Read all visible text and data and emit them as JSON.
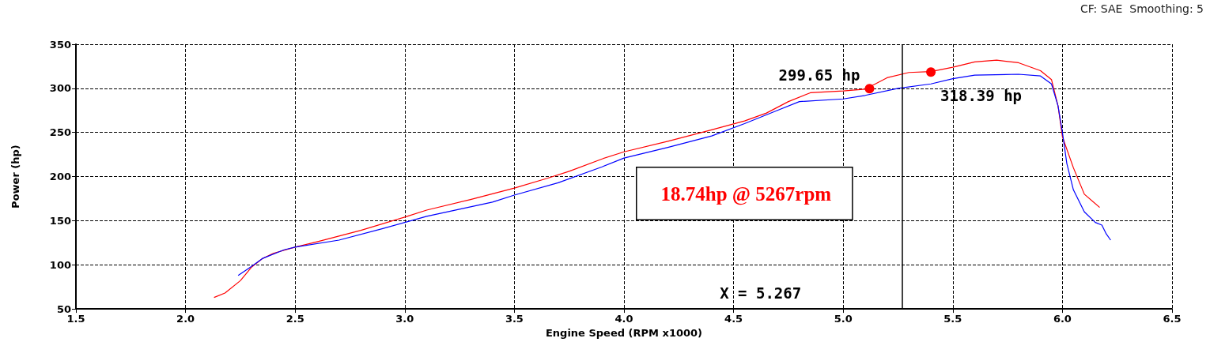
{
  "chart_data": {
    "type": "line",
    "xlabel": "Engine Speed (RPM x1000)",
    "ylabel": "Power (hp)",
    "xlim": [
      1.5,
      6.5
    ],
    "xticks": [
      1.5,
      {
        "value": 2,
        "label": "2.0"
      },
      2.5,
      {
        "value": 3,
        "label": "3.0"
      },
      3.5,
      {
        "value": 4,
        "label": "4.0"
      },
      4.5,
      {
        "value": 5,
        "label": "5.0"
      },
      5.5,
      {
        "value": 6,
        "label": "6.0"
      },
      6.5
    ],
    "ylim": [
      50,
      350
    ],
    "yticks": [
      50,
      100,
      150,
      200,
      250,
      300,
      350
    ],
    "grid": true,
    "marker": "none",
    "line_style": "solid",
    "series": [
      {
        "color": "#ff0000",
        "x": [
          2.13,
          2.18,
          2.25,
          2.3,
          2.35,
          2.4,
          2.5,
          2.6,
          2.8,
          3.0,
          3.1,
          3.3,
          3.5,
          3.65,
          3.75,
          3.9,
          4.0,
          4.2,
          4.4,
          4.55,
          4.65,
          4.75,
          4.85,
          5.0,
          5.1,
          5.2,
          5.3,
          5.4,
          5.5,
          5.6,
          5.7,
          5.8,
          5.9,
          5.95,
          5.98,
          6.0,
          6.05,
          6.1,
          6.17
        ],
        "values": [
          63,
          68,
          82,
          97,
          107,
          113,
          120,
          126,
          139,
          154,
          162,
          174,
          187,
          198,
          206,
          220,
          228,
          240,
          253,
          263,
          272,
          285,
          295,
          297,
          299,
          312,
          318,
          319,
          324,
          330,
          332,
          329,
          320,
          310,
          280,
          245,
          210,
          180,
          165
        ]
      },
      {
        "color": "#0000ff",
        "x": [
          2.24,
          2.3,
          2.35,
          2.45,
          2.5,
          2.7,
          2.9,
          3.0,
          3.1,
          3.4,
          3.5,
          3.7,
          3.9,
          4.0,
          4.2,
          4.4,
          4.55,
          4.7,
          4.8,
          5.0,
          5.1,
          5.25,
          5.4,
          5.5,
          5.6,
          5.8,
          5.9,
          5.95,
          5.98,
          6.0,
          6.02,
          6.05,
          6.1,
          6.15,
          6.18,
          6.2,
          6.22
        ],
        "values": [
          88,
          98,
          107,
          117,
          120,
          128,
          141,
          148,
          155,
          171,
          179,
          193,
          211,
          221,
          233,
          246,
          260,
          275,
          285,
          288,
          292,
          300,
          305,
          311,
          315,
          316,
          314,
          305,
          280,
          250,
          215,
          185,
          160,
          148,
          145,
          135,
          128
        ]
      }
    ],
    "ref_lines": [
      {
        "axis": "x",
        "value": 5.267,
        "label": "X = 5.267",
        "color": "#000000"
      }
    ],
    "annotations": [
      {
        "text": "299.65 hp",
        "x": 5.12,
        "y": 299.65
      },
      {
        "text": "318.39 hp",
        "x": 5.4,
        "y": 318.39
      },
      "18.74hp @ 5267rpm",
      "CF: SAE  Smoothing: 5"
    ]
  }
}
